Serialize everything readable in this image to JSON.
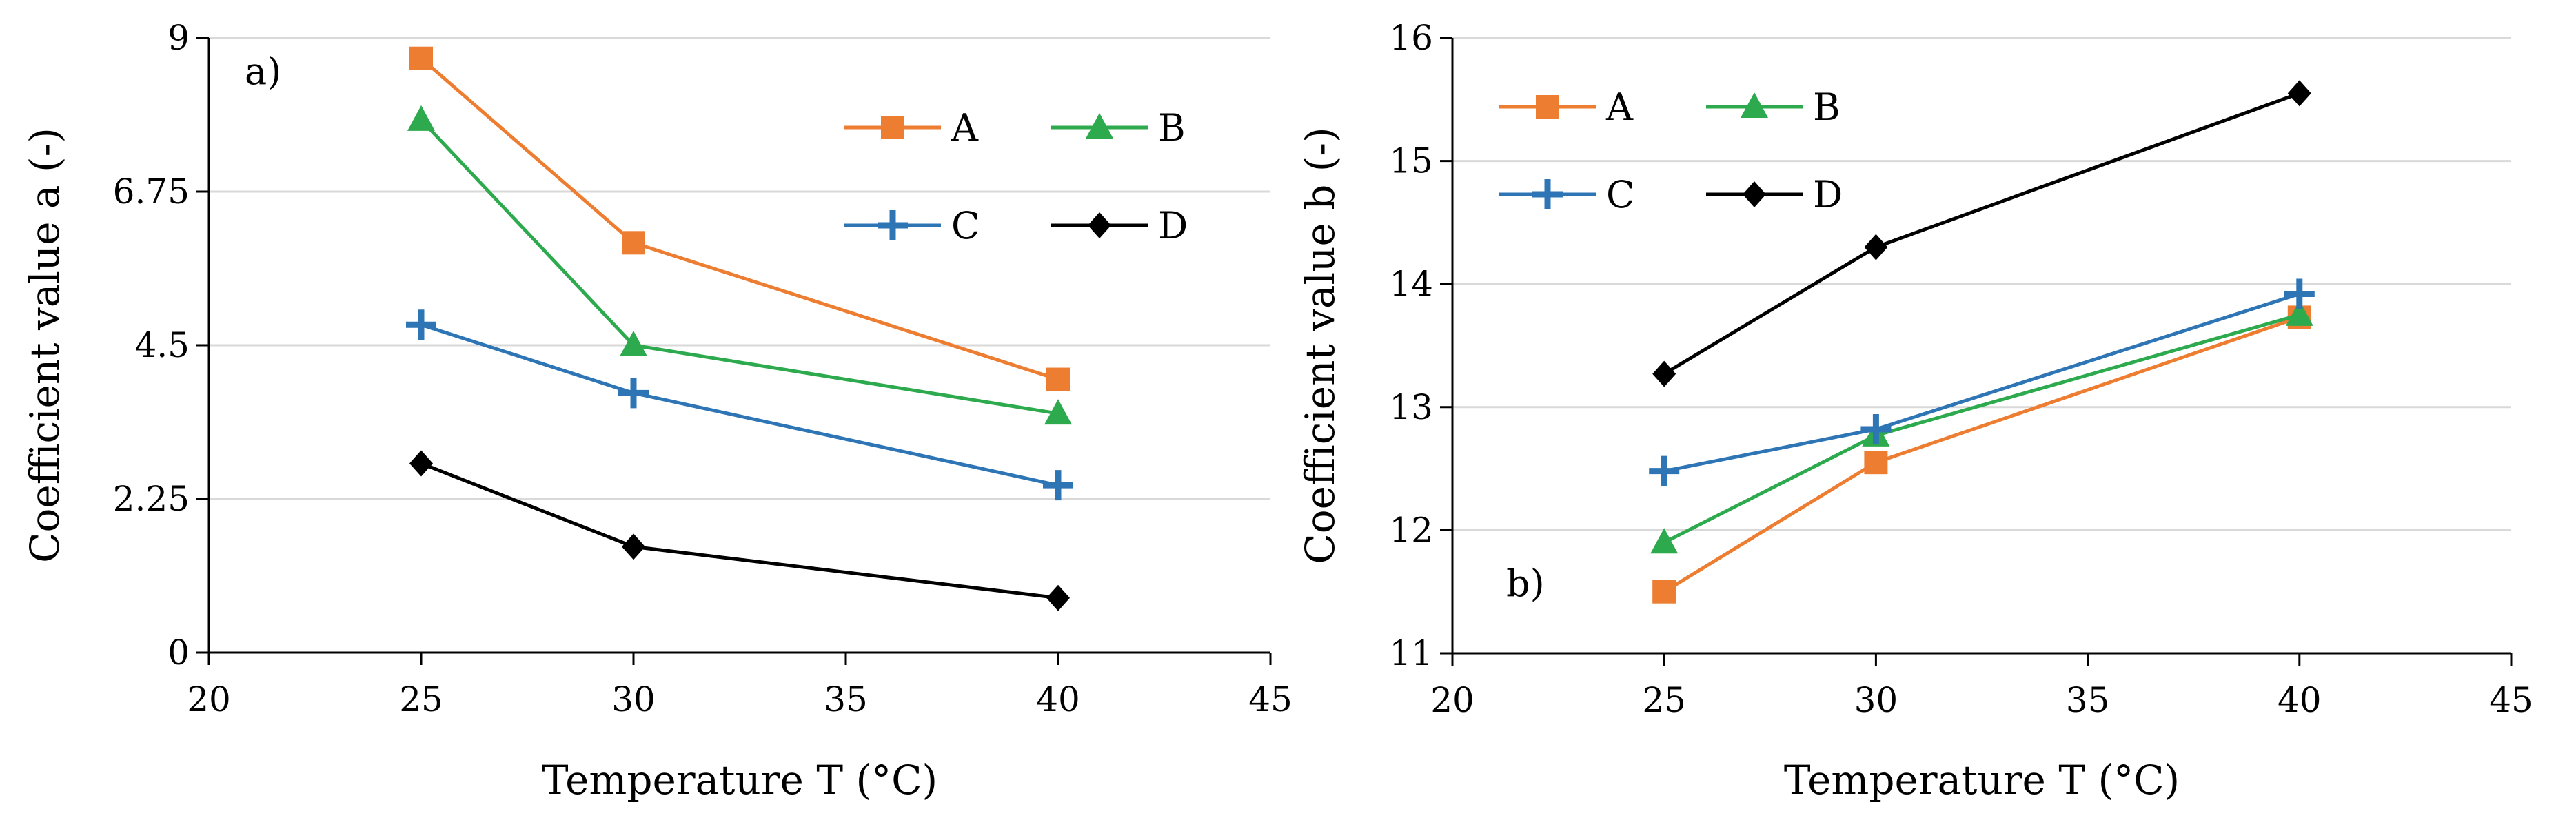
{
  "chart_data": [
    {
      "type": "line",
      "panel_label": "a)",
      "xlabel": "Temperature T (°C)",
      "ylabel": "Coefficient value a (-)",
      "xlim": [
        20,
        45
      ],
      "ylim": [
        0,
        9
      ],
      "x_ticks": [
        "20",
        "25",
        "30",
        "35",
        "40",
        "45"
      ],
      "y_ticks": [
        "0",
        "2.25",
        "4.5",
        "6.75",
        "9"
      ],
      "x": [
        25,
        30,
        40
      ],
      "grid": "horizontal",
      "legend_position": "top-right",
      "series": [
        {
          "name": "A",
          "color": "#ED7D31",
          "marker": "square",
          "values": [
            8.7,
            6.0,
            4.0
          ]
        },
        {
          "name": "B",
          "color": "#2EAA4E",
          "marker": "triangle",
          "values": [
            7.8,
            4.5,
            3.5
          ]
        },
        {
          "name": "C",
          "color": "#2E75B6",
          "marker": "plus",
          "values": [
            4.8,
            3.8,
            2.45
          ]
        },
        {
          "name": "D",
          "color": "#000000",
          "marker": "diamond",
          "values": [
            2.77,
            1.55,
            0.8
          ]
        }
      ]
    },
    {
      "type": "line",
      "panel_label": "b)",
      "xlabel": "Temperature T (°C)",
      "ylabel": "Coefficient value b (-)",
      "xlim": [
        20,
        45
      ],
      "ylim": [
        11,
        16
      ],
      "x_ticks": [
        "20",
        "25",
        "30",
        "35",
        "40",
        "45"
      ],
      "y_ticks": [
        "11",
        "12",
        "13",
        "14",
        "15",
        "16"
      ],
      "x": [
        25,
        30,
        40
      ],
      "grid": "horizontal",
      "legend_position": "top-left",
      "series": [
        {
          "name": "A",
          "color": "#ED7D31",
          "marker": "square",
          "values": [
            11.5,
            12.55,
            13.73
          ]
        },
        {
          "name": "B",
          "color": "#2EAA4E",
          "marker": "triangle",
          "values": [
            11.9,
            12.77,
            13.75
          ]
        },
        {
          "name": "C",
          "color": "#2E75B6",
          "marker": "plus",
          "values": [
            12.48,
            12.82,
            13.92
          ]
        },
        {
          "name": "D",
          "color": "#000000",
          "marker": "diamond",
          "values": [
            13.27,
            14.3,
            15.55
          ]
        }
      ]
    }
  ]
}
